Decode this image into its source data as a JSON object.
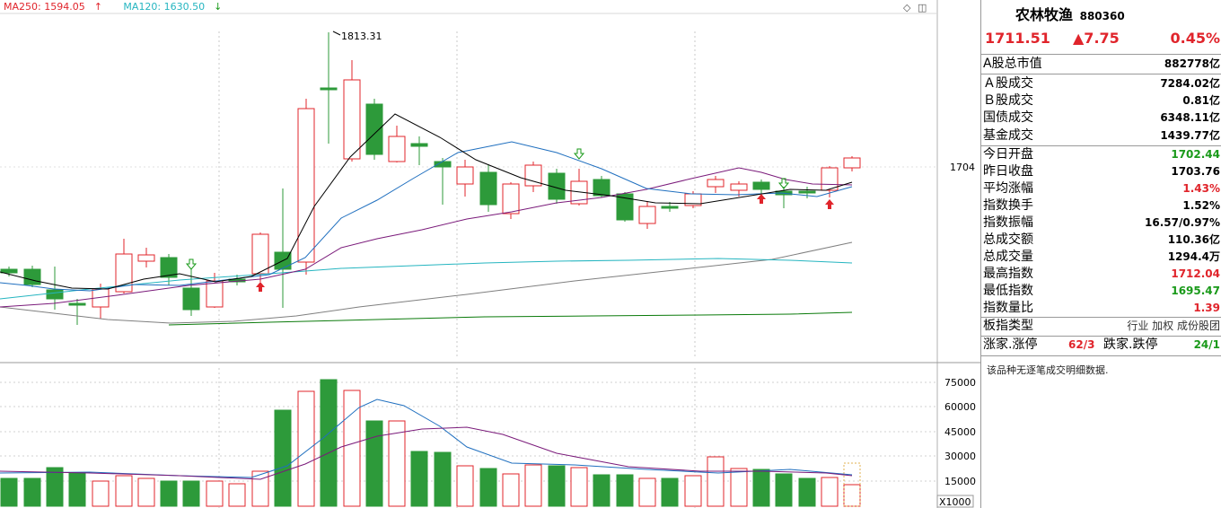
{
  "legend": {
    "ma250": "MA250: 1594.05",
    "ma250_arrow": "↑",
    "ma120": "MA120: 1630.50",
    "ma120_arrow": "↓"
  },
  "chart": {
    "high_label": "1813.31",
    "price_axis_label": "1704",
    "volume_axis_labels": [
      "75000",
      "60000",
      "45000",
      "30000",
      "15000"
    ],
    "volume_unit": "X1000"
  },
  "colors": {
    "up": "#e0242b",
    "down": "#2d9a3a",
    "ma5": "#000000",
    "ma10": "#1f6fbf",
    "ma20": "#7a1a7a",
    "ma60": "#25b5c0",
    "ma120": "#7f7f7f",
    "ma250": "#0a7a0a"
  },
  "header": {
    "name": "农林牧渔",
    "code": "880360"
  },
  "quote": {
    "price": "1711.51",
    "change": "▲7.75",
    "pct": "0.45%"
  },
  "info": [
    {
      "label": "A股总市值",
      "value": "882778亿",
      "color": ""
    },
    {
      "label": "Ａ股成交",
      "value": "7284.02亿",
      "color": ""
    },
    {
      "label": "Ｂ股成交",
      "value": "0.81亿",
      "color": ""
    },
    {
      "label": "国债成交",
      "value": "6348.11亿",
      "color": ""
    },
    {
      "label": "基金成交",
      "value": "1439.77亿",
      "color": ""
    },
    {
      "label": "今日开盘",
      "value": "1702.44",
      "color": "green"
    },
    {
      "label": "昨日收盘",
      "value": "1703.76",
      "color": ""
    },
    {
      "label": "平均涨幅",
      "value": "1.43%",
      "color": "red"
    },
    {
      "label": "指数换手",
      "value": "1.52%",
      "color": ""
    },
    {
      "label": "指数振幅",
      "value": "16.57/0.97%",
      "color": ""
    },
    {
      "label": "总成交额",
      "value": "110.36亿",
      "color": ""
    },
    {
      "label": "总成交量",
      "value": "1294.4万",
      "color": ""
    },
    {
      "label": "最高指数",
      "value": "1712.04",
      "color": "red"
    },
    {
      "label": "最低指数",
      "value": "1695.47",
      "color": "green"
    },
    {
      "label": "指数量比",
      "value": "1.39",
      "color": "red"
    }
  ],
  "board_type": {
    "label": "板指类型",
    "options": "行业 加权 成份股团"
  },
  "breadth": {
    "up_label": "涨家.涨停",
    "up_value": "62/3",
    "down_label": "跌家.跌停",
    "down_value": "24/1"
  },
  "note": "该品种无逐笔成交明细数据."
}
